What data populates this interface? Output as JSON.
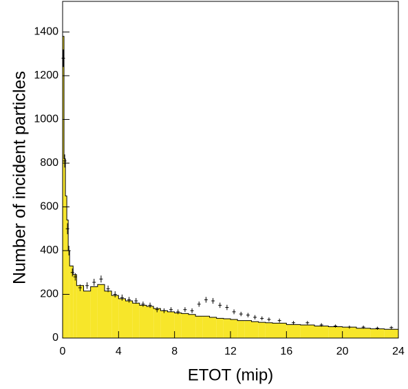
{
  "chart_data": {
    "type": "histogram",
    "xlabel": "ETOT (mip)",
    "ylabel": "Number of incident particles",
    "color": "#f7e62a",
    "edge_color": "#000000",
    "bins": [
      0,
      0.1,
      0.2,
      0.3,
      0.4,
      0.5,
      0.75,
      1,
      1.5,
      2,
      2.5,
      3,
      3.5,
      4,
      4.5,
      5,
      5.5,
      6,
      6.5,
      7,
      7.5,
      8,
      8.5,
      9,
      9.5,
      10,
      10.5,
      11,
      11.5,
      12,
      12.5,
      13,
      13.5,
      14,
      14.5,
      15,
      16,
      17,
      18,
      19,
      20,
      21,
      22,
      23,
      24
    ],
    "counts": [
      1380,
      820,
      650,
      540,
      400,
      330,
      290,
      240,
      215,
      235,
      245,
      215,
      195,
      180,
      170,
      160,
      150,
      145,
      135,
      125,
      120,
      115,
      112,
      108,
      100,
      100,
      95,
      90,
      88,
      85,
      80,
      80,
      75,
      72,
      70,
      68,
      62,
      60,
      55,
      52,
      50,
      45,
      42,
      40
    ],
    "points": {
      "x": [
        0.05,
        0.15,
        0.35,
        0.45,
        0.7,
        0.9,
        1.25,
        1.75,
        2.25,
        2.75,
        3.25,
        3.75,
        4.25,
        4.75,
        5.25,
        5.75,
        6.25,
        6.75,
        7.25,
        7.75,
        8.25,
        8.75,
        9.25,
        9.75,
        10.25,
        10.75,
        11.25,
        11.75,
        12.25,
        12.75,
        13.25,
        13.75,
        14.25,
        14.75,
        15.5,
        16.5,
        17.5,
        18.5,
        19.5,
        20.5,
        21.5,
        22.5,
        23.5
      ],
      "y": [
        1280,
        810,
        500,
        400,
        300,
        280,
        230,
        240,
        255,
        270,
        225,
        200,
        185,
        175,
        170,
        155,
        150,
        130,
        125,
        130,
        120,
        130,
        125,
        155,
        175,
        170,
        150,
        140,
        120,
        110,
        105,
        95,
        90,
        85,
        80,
        70,
        70,
        60,
        55,
        50,
        50,
        45,
        48
      ],
      "errors": [
        40,
        30,
        25,
        22,
        18,
        17,
        15,
        15,
        16,
        16,
        15,
        14,
        14,
        13,
        13,
        12,
        12,
        12,
        11,
        11,
        11,
        11,
        11,
        12,
        13,
        13,
        12,
        12,
        11,
        10,
        10,
        10,
        9,
        9,
        9,
        8,
        8,
        8,
        7,
        7,
        7,
        7,
        7
      ]
    },
    "point_color": "#000000",
    "xlim": [
      0,
      24
    ],
    "ylim": [
      0,
      1540
    ],
    "xticks": [
      0,
      4,
      8,
      12,
      16,
      20,
      24
    ],
    "yticks": [
      0,
      200,
      400,
      600,
      800,
      1000,
      1200,
      1400
    ]
  }
}
